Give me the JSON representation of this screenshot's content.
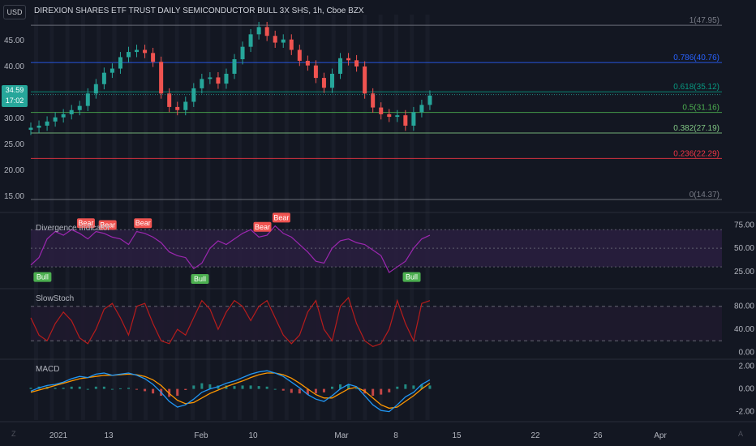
{
  "header": {
    "currency": "USD",
    "title": "DIREXION SHARES ETF TRUST DAILY SEMICONDUCTOR BULL 3X SHS, 1h, Cboe BZX"
  },
  "last_price": {
    "value": "34.59",
    "countdown": "17:02"
  },
  "colors": {
    "background": "#131722",
    "up": "#26a69a",
    "down": "#ef5350",
    "divergence_line": "#9c27b0",
    "slowstoch_line": "#b71c1c",
    "macd_line": "#2196f3",
    "signal_line": "#ff9800",
    "price_tag": "#26a69a"
  },
  "icons": {
    "left_corner": "Z",
    "right_corner": "A"
  },
  "time_axis": [
    "2021",
    "13",
    "Feb",
    "10",
    "Mar",
    "8",
    "15",
    "22",
    "26",
    "Apr"
  ],
  "chart_data": [
    {
      "type": "candlestick",
      "pane": "price",
      "y_ticks": [
        "45.00",
        "40.00",
        "35.00",
        "30.00",
        "25.00",
        "20.00",
        "15.00"
      ],
      "ylim": [
        12.5,
        50
      ],
      "x_range": [
        0,
        150
      ],
      "approx_close": [
        [
          0,
          28.2
        ],
        [
          3,
          28.6
        ],
        [
          6,
          29.4
        ],
        [
          9,
          30.2
        ],
        [
          12,
          30.8
        ],
        [
          15,
          31.6
        ],
        [
          18,
          32.4
        ],
        [
          21,
          34.8
        ],
        [
          24,
          36.6
        ],
        [
          27,
          38.8
        ],
        [
          30,
          39.6
        ],
        [
          33,
          41.8
        ],
        [
          36,
          42.8
        ],
        [
          39,
          43.2
        ],
        [
          42,
          42.6
        ],
        [
          45,
          40.9
        ],
        [
          48,
          34.8
        ],
        [
          51,
          32.2
        ],
        [
          54,
          31.6
        ],
        [
          57,
          33.2
        ],
        [
          60,
          35.8
        ],
        [
          63,
          37.6
        ],
        [
          66,
          37.9
        ],
        [
          69,
          36.7
        ],
        [
          72,
          38.6
        ],
        [
          75,
          41.4
        ],
        [
          78,
          43.8
        ],
        [
          81,
          46.2
        ],
        [
          84,
          47.6
        ],
        [
          87,
          45.9
        ],
        [
          90,
          44.6
        ],
        [
          93,
          45.2
        ],
        [
          96,
          43.2
        ],
        [
          99,
          41.1
        ],
        [
          102,
          40.2
        ],
        [
          105,
          37.8
        ],
        [
          108,
          35.9
        ],
        [
          111,
          38.6
        ],
        [
          114,
          41.6
        ],
        [
          117,
          41.2
        ],
        [
          120,
          40.0
        ],
        [
          123,
          34.8
        ],
        [
          126,
          32.1
        ],
        [
          129,
          30.8
        ],
        [
          132,
          30.3
        ],
        [
          135,
          30.6
        ],
        [
          138,
          28.6
        ],
        [
          141,
          31.2
        ],
        [
          144,
          32.6
        ],
        [
          147,
          34.4
        ]
      ],
      "fibonacci": [
        {
          "label": "1(47.95)",
          "value": 47.95,
          "color": "#787b86"
        },
        {
          "label": "0.786(40.76)",
          "value": 40.76,
          "color": "#2962ff"
        },
        {
          "label": "0.618(35.12)",
          "value": 35.12,
          "color": "#089981"
        },
        {
          "label": "0.5(31.16)",
          "value": 31.16,
          "color": "#4caf50"
        },
        {
          "label": "0.382(27.19)",
          "value": 27.19,
          "color": "#81c784"
        },
        {
          "label": "0.236(22.29)",
          "value": 22.29,
          "color": "#f23645"
        },
        {
          "label": "0(14.37)",
          "value": 14.37,
          "color": "#787b86"
        }
      ]
    },
    {
      "type": "line",
      "pane": "divergence",
      "title": "Divergence Indicator",
      "y_ticks": [
        "75.00",
        "50.00",
        "25.00"
      ],
      "ylim": [
        10,
        85
      ],
      "band": [
        30,
        70
      ],
      "midline": 50,
      "x_range": [
        0,
        150
      ],
      "values": [
        [
          0,
          32
        ],
        [
          3,
          40
        ],
        [
          6,
          60
        ],
        [
          9,
          68
        ],
        [
          12,
          64
        ],
        [
          15,
          70
        ],
        [
          18,
          66
        ],
        [
          21,
          60
        ],
        [
          24,
          68
        ],
        [
          27,
          66
        ],
        [
          30,
          62
        ],
        [
          33,
          60
        ],
        [
          36,
          54
        ],
        [
          39,
          68
        ],
        [
          42,
          66
        ],
        [
          45,
          62
        ],
        [
          48,
          56
        ],
        [
          51,
          46
        ],
        [
          54,
          42
        ],
        [
          57,
          40
        ],
        [
          60,
          28
        ],
        [
          63,
          34
        ],
        [
          66,
          50
        ],
        [
          69,
          58
        ],
        [
          72,
          54
        ],
        [
          75,
          60
        ],
        [
          78,
          66
        ],
        [
          81,
          70
        ],
        [
          84,
          62
        ],
        [
          87,
          64
        ],
        [
          90,
          74
        ],
        [
          93,
          66
        ],
        [
          96,
          62
        ],
        [
          99,
          54
        ],
        [
          102,
          46
        ],
        [
          105,
          36
        ],
        [
          108,
          34
        ],
        [
          111,
          50
        ],
        [
          114,
          58
        ],
        [
          117,
          60
        ],
        [
          120,
          56
        ],
        [
          123,
          54
        ],
        [
          126,
          48
        ],
        [
          129,
          42
        ],
        [
          132,
          24
        ],
        [
          135,
          30
        ],
        [
          138,
          36
        ],
        [
          141,
          50
        ],
        [
          144,
          60
        ],
        [
          147,
          64
        ]
      ],
      "signals": [
        {
          "label": "Bear",
          "x": 20,
          "y": 70
        },
        {
          "label": "Bear",
          "x": 28,
          "y": 68
        },
        {
          "label": "Bear",
          "x": 41,
          "y": 70
        },
        {
          "label": "Bear",
          "x": 85,
          "y": 66
        },
        {
          "label": "Bear",
          "x": 92,
          "y": 76
        },
        {
          "label": "Bull",
          "x": 4,
          "y": 26
        },
        {
          "label": "Bull",
          "x": 62,
          "y": 24
        },
        {
          "label": "Bull",
          "x": 140,
          "y": 26
        }
      ]
    },
    {
      "type": "line",
      "pane": "slowstoch",
      "title": "SlowStoch",
      "y_ticks": [
        "80.00",
        "40.00",
        "0.00"
      ],
      "ylim": [
        -5,
        105
      ],
      "band": [
        20,
        80
      ],
      "x_range": [
        0,
        150
      ],
      "values": [
        [
          0,
          60
        ],
        [
          3,
          30
        ],
        [
          6,
          20
        ],
        [
          9,
          50
        ],
        [
          12,
          70
        ],
        [
          15,
          55
        ],
        [
          18,
          25
        ],
        [
          21,
          15
        ],
        [
          24,
          40
        ],
        [
          27,
          75
        ],
        [
          30,
          85
        ],
        [
          33,
          60
        ],
        [
          36,
          30
        ],
        [
          39,
          80
        ],
        [
          42,
          85
        ],
        [
          45,
          50
        ],
        [
          48,
          20
        ],
        [
          51,
          15
        ],
        [
          54,
          40
        ],
        [
          57,
          30
        ],
        [
          60,
          60
        ],
        [
          63,
          90
        ],
        [
          66,
          75
        ],
        [
          69,
          40
        ],
        [
          72,
          70
        ],
        [
          75,
          90
        ],
        [
          78,
          80
        ],
        [
          81,
          55
        ],
        [
          84,
          80
        ],
        [
          87,
          90
        ],
        [
          90,
          60
        ],
        [
          93,
          30
        ],
        [
          96,
          15
        ],
        [
          99,
          30
        ],
        [
          102,
          70
        ],
        [
          105,
          90
        ],
        [
          108,
          40
        ],
        [
          111,
          20
        ],
        [
          114,
          80
        ],
        [
          117,
          95
        ],
        [
          120,
          50
        ],
        [
          123,
          20
        ],
        [
          126,
          10
        ],
        [
          129,
          15
        ],
        [
          132,
          40
        ],
        [
          135,
          90
        ],
        [
          138,
          50
        ],
        [
          141,
          20
        ],
        [
          144,
          85
        ],
        [
          147,
          90
        ]
      ]
    },
    {
      "type": "line",
      "pane": "macd",
      "title": "MACD",
      "y_ticks": [
        "2.00",
        "0.00",
        "-2.00"
      ],
      "ylim": [
        -2.6,
        2.4
      ],
      "x_range": [
        0,
        150
      ],
      "series": [
        {
          "values": [
            [
              0,
              -0.2
            ],
            [
              3,
              0.1
            ],
            [
              6,
              0.3
            ],
            [
              9,
              0.4
            ],
            [
              12,
              0.6
            ],
            [
              15,
              0.9
            ],
            [
              18,
              1.1
            ],
            [
              21,
              1.0
            ],
            [
              24,
              1.3
            ],
            [
              27,
              1.4
            ],
            [
              30,
              1.2
            ],
            [
              33,
              1.3
            ],
            [
              36,
              1.4
            ],
            [
              39,
              1.2
            ],
            [
              42,
              0.9
            ],
            [
              45,
              0.4
            ],
            [
              48,
              -0.3
            ],
            [
              51,
              -1.1
            ],
            [
              54,
              -1.6
            ],
            [
              57,
              -1.4
            ],
            [
              60,
              -0.9
            ],
            [
              63,
              -0.3
            ],
            [
              66,
              0.0
            ],
            [
              69,
              0.2
            ],
            [
              72,
              0.5
            ],
            [
              75,
              0.7
            ],
            [
              78,
              1.0
            ],
            [
              81,
              1.3
            ],
            [
              84,
              1.5
            ],
            [
              87,
              1.6
            ],
            [
              90,
              1.4
            ],
            [
              93,
              1.1
            ],
            [
              96,
              0.6
            ],
            [
              99,
              0.1
            ],
            [
              102,
              -0.5
            ],
            [
              105,
              -0.9
            ],
            [
              108,
              -1.1
            ],
            [
              111,
              -0.6
            ],
            [
              114,
              0.0
            ],
            [
              117,
              0.4
            ],
            [
              120,
              0.2
            ],
            [
              123,
              -0.6
            ],
            [
              126,
              -1.4
            ],
            [
              129,
              -1.9
            ],
            [
              132,
              -2.0
            ],
            [
              135,
              -1.4
            ],
            [
              138,
              -0.7
            ],
            [
              141,
              -0.3
            ],
            [
              144,
              0.4
            ],
            [
              147,
              0.8
            ]
          ]
        },
        {
          "values": [
            [
              0,
              -0.3
            ],
            [
              3,
              -0.1
            ],
            [
              6,
              0.1
            ],
            [
              9,
              0.3
            ],
            [
              12,
              0.5
            ],
            [
              15,
              0.7
            ],
            [
              18,
              0.9
            ],
            [
              21,
              1.0
            ],
            [
              24,
              1.1
            ],
            [
              27,
              1.2
            ],
            [
              30,
              1.2
            ],
            [
              33,
              1.25
            ],
            [
              36,
              1.3
            ],
            [
              39,
              1.25
            ],
            [
              42,
              1.1
            ],
            [
              45,
              0.8
            ],
            [
              48,
              0.3
            ],
            [
              51,
              -0.4
            ],
            [
              54,
              -1.0
            ],
            [
              57,
              -1.3
            ],
            [
              60,
              -1.2
            ],
            [
              63,
              -0.8
            ],
            [
              66,
              -0.4
            ],
            [
              69,
              -0.1
            ],
            [
              72,
              0.2
            ],
            [
              75,
              0.45
            ],
            [
              78,
              0.7
            ],
            [
              81,
              1.0
            ],
            [
              84,
              1.25
            ],
            [
              87,
              1.4
            ],
            [
              90,
              1.4
            ],
            [
              93,
              1.25
            ],
            [
              96,
              0.95
            ],
            [
              99,
              0.5
            ],
            [
              102,
              0.0
            ],
            [
              105,
              -0.5
            ],
            [
              108,
              -0.8
            ],
            [
              111,
              -0.8
            ],
            [
              114,
              -0.4
            ],
            [
              117,
              0.0
            ],
            [
              120,
              0.15
            ],
            [
              123,
              -0.2
            ],
            [
              126,
              -0.8
            ],
            [
              129,
              -1.4
            ],
            [
              132,
              -1.7
            ],
            [
              135,
              -1.6
            ],
            [
              138,
              -1.1
            ],
            [
              141,
              -0.6
            ],
            [
              144,
              0.0
            ],
            [
              147,
              0.5
            ]
          ]
        }
      ]
    }
  ]
}
